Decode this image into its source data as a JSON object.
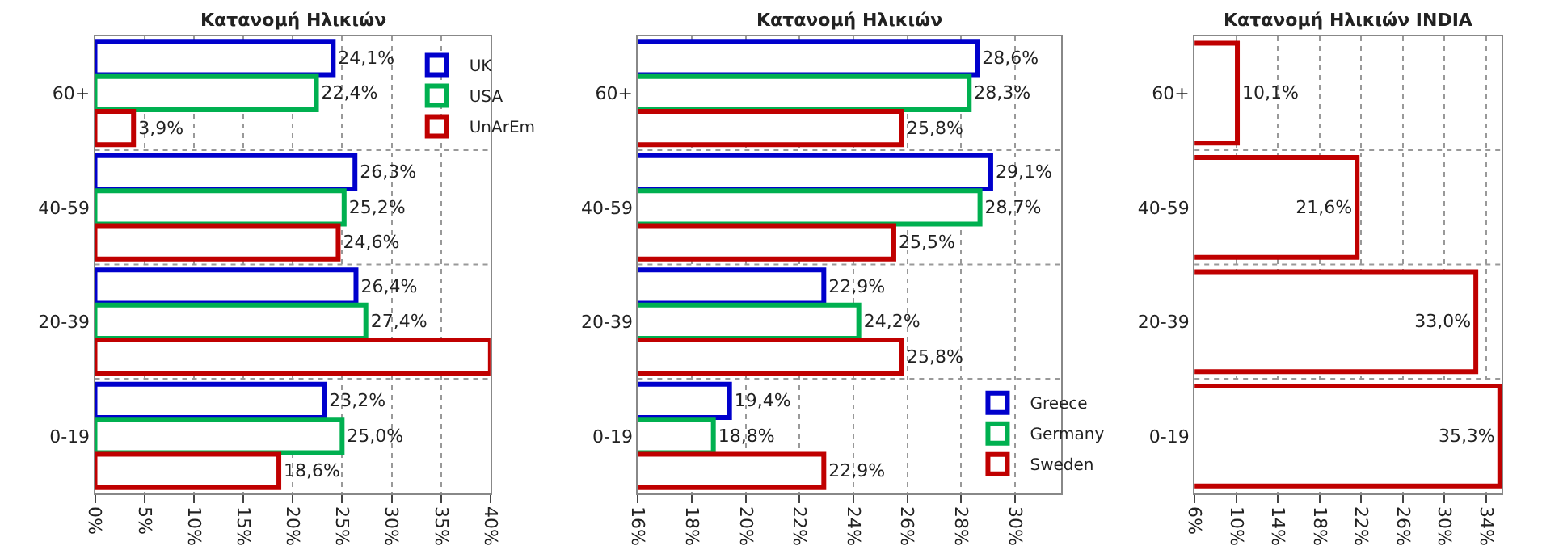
{
  "chart_data": [
    {
      "type": "bar",
      "orientation": "horizontal",
      "title": "Κατανομή Ηλικιών",
      "categories": [
        "60+",
        "40-59",
        "20-39",
        "0-19"
      ],
      "xlim": [
        0,
        40
      ],
      "xticks": [
        {
          "value": 0,
          "label": "0%"
        },
        {
          "value": 5,
          "label": "5%"
        },
        {
          "value": 10,
          "label": "10%"
        },
        {
          "value": 15,
          "label": "15%"
        },
        {
          "value": 20,
          "label": "20%"
        },
        {
          "value": 25,
          "label": "25%"
        },
        {
          "value": 30,
          "label": "30%"
        },
        {
          "value": 35,
          "label": "35%"
        },
        {
          "value": 40,
          "label": "40%"
        }
      ],
      "grid": "x",
      "legend": "top right",
      "series": [
        {
          "name": "UK",
          "color": "#0000cc",
          "values": [
            24.1,
            26.3,
            26.4,
            23.2
          ],
          "value_labels": [
            "24,1%",
            "26,3%",
            "26,4%",
            "23,2%"
          ]
        },
        {
          "name": "USA",
          "color": "#00b050",
          "values": [
            22.4,
            25.2,
            27.4,
            25.0
          ],
          "value_labels": [
            "22,4%",
            "25,2%",
            "27,4%",
            "25,0%"
          ]
        },
        {
          "name": "UnArEm",
          "color": "#c00000",
          "values": [
            3.9,
            24.6,
            40,
            18.6
          ],
          "value_labels": [
            "3,9%",
            "24,6%",
            null,
            "18,6%"
          ]
        }
      ]
    },
    {
      "type": "bar",
      "orientation": "horizontal",
      "title": "Κατανομή Ηλικιών",
      "categories": [
        "60+",
        "40-59",
        "20-39",
        "0-19"
      ],
      "xlim": [
        16,
        31.7
      ],
      "xticks": [
        {
          "value": 16,
          "label": "16%"
        },
        {
          "value": 18,
          "label": "18%"
        },
        {
          "value": 20,
          "label": "20%"
        },
        {
          "value": 22,
          "label": "22%"
        },
        {
          "value": 24,
          "label": "24%"
        },
        {
          "value": 26,
          "label": "26%"
        },
        {
          "value": 28,
          "label": "28%"
        },
        {
          "value": 30,
          "label": "30%"
        }
      ],
      "grid": "x",
      "legend": "bottom right",
      "series": [
        {
          "name": "Greece",
          "color": "#0000cc",
          "values": [
            28.6,
            29.1,
            22.9,
            19.4
          ],
          "value_labels": [
            "28,6%",
            "29,1%",
            "22,9%",
            "19,4%"
          ]
        },
        {
          "name": "Germany",
          "color": "#00b050",
          "values": [
            28.3,
            28.7,
            24.2,
            18.8
          ],
          "value_labels": [
            "28,3%",
            "28,7%",
            "24,2%",
            "18,8%"
          ]
        },
        {
          "name": "Sweden",
          "color": "#c00000",
          "values": [
            25.8,
            25.5,
            25.8,
            22.9
          ],
          "value_labels": [
            "25,8%",
            "25,5%",
            "25,8%",
            "22,9%"
          ]
        }
      ]
    },
    {
      "type": "bar",
      "orientation": "horizontal",
      "title": "Κατανομή Ηλικιών INDIA",
      "categories": [
        "60+",
        "40-59",
        "20-39",
        "0-19"
      ],
      "xlim": [
        6,
        35.5
      ],
      "xticks": [
        {
          "value": 6,
          "label": "6%"
        },
        {
          "value": 10,
          "label": "10%"
        },
        {
          "value": 14,
          "label": "14%"
        },
        {
          "value": 18,
          "label": "18%"
        },
        {
          "value": 22,
          "label": "22%"
        },
        {
          "value": 26,
          "label": "26%"
        },
        {
          "value": 30,
          "label": "30%"
        },
        {
          "value": 34,
          "label": "34%"
        }
      ],
      "grid": "x",
      "series": [
        {
          "color": "#c00000",
          "values": [
            10.1,
            21.6,
            33.0,
            35.3
          ],
          "value_labels": [
            "10,1%",
            "21,6%",
            "33,0%",
            "35,3%"
          ]
        }
      ]
    }
  ]
}
